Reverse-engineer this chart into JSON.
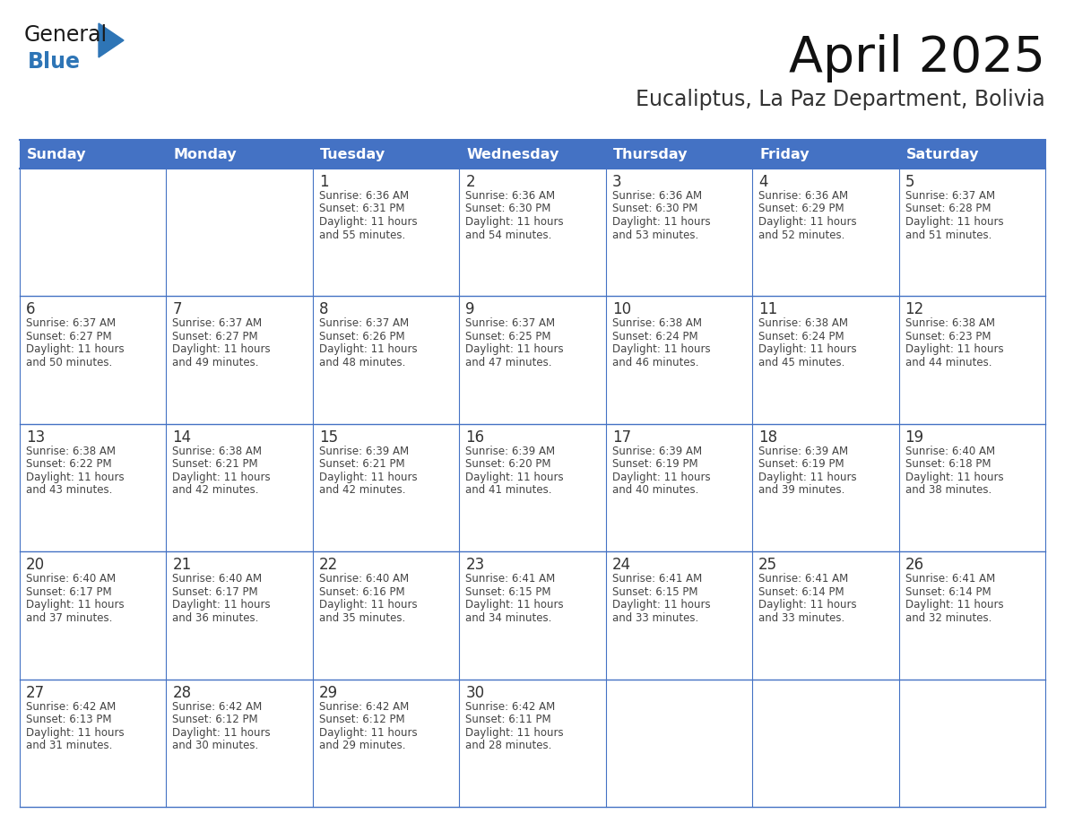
{
  "title": "April 2025",
  "subtitle": "Eucaliptus, La Paz Department, Bolivia",
  "header_bg_color": "#4472C4",
  "header_text_color": "#FFFFFF",
  "day_names": [
    "Sunday",
    "Monday",
    "Tuesday",
    "Wednesday",
    "Thursday",
    "Friday",
    "Saturday"
  ],
  "number_color": "#333333",
  "text_color": "#444444",
  "border_color": "#4472C4",
  "logo_text_general": "General",
  "logo_text_blue": "Blue",
  "logo_color_general": "#1a1a1a",
  "logo_color_blue": "#2E75B6",
  "logo_triangle_color": "#2E75B6",
  "days_data": [
    {
      "day": 1,
      "col": 2,
      "row": 0,
      "sunrise": "6:36 AM",
      "sunset": "6:31 PM",
      "daylight_hours": 11,
      "daylight_minutes": 55
    },
    {
      "day": 2,
      "col": 3,
      "row": 0,
      "sunrise": "6:36 AM",
      "sunset": "6:30 PM",
      "daylight_hours": 11,
      "daylight_minutes": 54
    },
    {
      "day": 3,
      "col": 4,
      "row": 0,
      "sunrise": "6:36 AM",
      "sunset": "6:30 PM",
      "daylight_hours": 11,
      "daylight_minutes": 53
    },
    {
      "day": 4,
      "col": 5,
      "row": 0,
      "sunrise": "6:36 AM",
      "sunset": "6:29 PM",
      "daylight_hours": 11,
      "daylight_minutes": 52
    },
    {
      "day": 5,
      "col": 6,
      "row": 0,
      "sunrise": "6:37 AM",
      "sunset": "6:28 PM",
      "daylight_hours": 11,
      "daylight_minutes": 51
    },
    {
      "day": 6,
      "col": 0,
      "row": 1,
      "sunrise": "6:37 AM",
      "sunset": "6:27 PM",
      "daylight_hours": 11,
      "daylight_minutes": 50
    },
    {
      "day": 7,
      "col": 1,
      "row": 1,
      "sunrise": "6:37 AM",
      "sunset": "6:27 PM",
      "daylight_hours": 11,
      "daylight_minutes": 49
    },
    {
      "day": 8,
      "col": 2,
      "row": 1,
      "sunrise": "6:37 AM",
      "sunset": "6:26 PM",
      "daylight_hours": 11,
      "daylight_minutes": 48
    },
    {
      "day": 9,
      "col": 3,
      "row": 1,
      "sunrise": "6:37 AM",
      "sunset": "6:25 PM",
      "daylight_hours": 11,
      "daylight_minutes": 47
    },
    {
      "day": 10,
      "col": 4,
      "row": 1,
      "sunrise": "6:38 AM",
      "sunset": "6:24 PM",
      "daylight_hours": 11,
      "daylight_minutes": 46
    },
    {
      "day": 11,
      "col": 5,
      "row": 1,
      "sunrise": "6:38 AM",
      "sunset": "6:24 PM",
      "daylight_hours": 11,
      "daylight_minutes": 45
    },
    {
      "day": 12,
      "col": 6,
      "row": 1,
      "sunrise": "6:38 AM",
      "sunset": "6:23 PM",
      "daylight_hours": 11,
      "daylight_minutes": 44
    },
    {
      "day": 13,
      "col": 0,
      "row": 2,
      "sunrise": "6:38 AM",
      "sunset": "6:22 PM",
      "daylight_hours": 11,
      "daylight_minutes": 43
    },
    {
      "day": 14,
      "col": 1,
      "row": 2,
      "sunrise": "6:38 AM",
      "sunset": "6:21 PM",
      "daylight_hours": 11,
      "daylight_minutes": 42
    },
    {
      "day": 15,
      "col": 2,
      "row": 2,
      "sunrise": "6:39 AM",
      "sunset": "6:21 PM",
      "daylight_hours": 11,
      "daylight_minutes": 42
    },
    {
      "day": 16,
      "col": 3,
      "row": 2,
      "sunrise": "6:39 AM",
      "sunset": "6:20 PM",
      "daylight_hours": 11,
      "daylight_minutes": 41
    },
    {
      "day": 17,
      "col": 4,
      "row": 2,
      "sunrise": "6:39 AM",
      "sunset": "6:19 PM",
      "daylight_hours": 11,
      "daylight_minutes": 40
    },
    {
      "day": 18,
      "col": 5,
      "row": 2,
      "sunrise": "6:39 AM",
      "sunset": "6:19 PM",
      "daylight_hours": 11,
      "daylight_minutes": 39
    },
    {
      "day": 19,
      "col": 6,
      "row": 2,
      "sunrise": "6:40 AM",
      "sunset": "6:18 PM",
      "daylight_hours": 11,
      "daylight_minutes": 38
    },
    {
      "day": 20,
      "col": 0,
      "row": 3,
      "sunrise": "6:40 AM",
      "sunset": "6:17 PM",
      "daylight_hours": 11,
      "daylight_minutes": 37
    },
    {
      "day": 21,
      "col": 1,
      "row": 3,
      "sunrise": "6:40 AM",
      "sunset": "6:17 PM",
      "daylight_hours": 11,
      "daylight_minutes": 36
    },
    {
      "day": 22,
      "col": 2,
      "row": 3,
      "sunrise": "6:40 AM",
      "sunset": "6:16 PM",
      "daylight_hours": 11,
      "daylight_minutes": 35
    },
    {
      "day": 23,
      "col": 3,
      "row": 3,
      "sunrise": "6:41 AM",
      "sunset": "6:15 PM",
      "daylight_hours": 11,
      "daylight_minutes": 34
    },
    {
      "day": 24,
      "col": 4,
      "row": 3,
      "sunrise": "6:41 AM",
      "sunset": "6:15 PM",
      "daylight_hours": 11,
      "daylight_minutes": 33
    },
    {
      "day": 25,
      "col": 5,
      "row": 3,
      "sunrise": "6:41 AM",
      "sunset": "6:14 PM",
      "daylight_hours": 11,
      "daylight_minutes": 33
    },
    {
      "day": 26,
      "col": 6,
      "row": 3,
      "sunrise": "6:41 AM",
      "sunset": "6:14 PM",
      "daylight_hours": 11,
      "daylight_minutes": 32
    },
    {
      "day": 27,
      "col": 0,
      "row": 4,
      "sunrise": "6:42 AM",
      "sunset": "6:13 PM",
      "daylight_hours": 11,
      "daylight_minutes": 31
    },
    {
      "day": 28,
      "col": 1,
      "row": 4,
      "sunrise": "6:42 AM",
      "sunset": "6:12 PM",
      "daylight_hours": 11,
      "daylight_minutes": 30
    },
    {
      "day": 29,
      "col": 2,
      "row": 4,
      "sunrise": "6:42 AM",
      "sunset": "6:12 PM",
      "daylight_hours": 11,
      "daylight_minutes": 29
    },
    {
      "day": 30,
      "col": 3,
      "row": 4,
      "sunrise": "6:42 AM",
      "sunset": "6:11 PM",
      "daylight_hours": 11,
      "daylight_minutes": 28
    }
  ]
}
